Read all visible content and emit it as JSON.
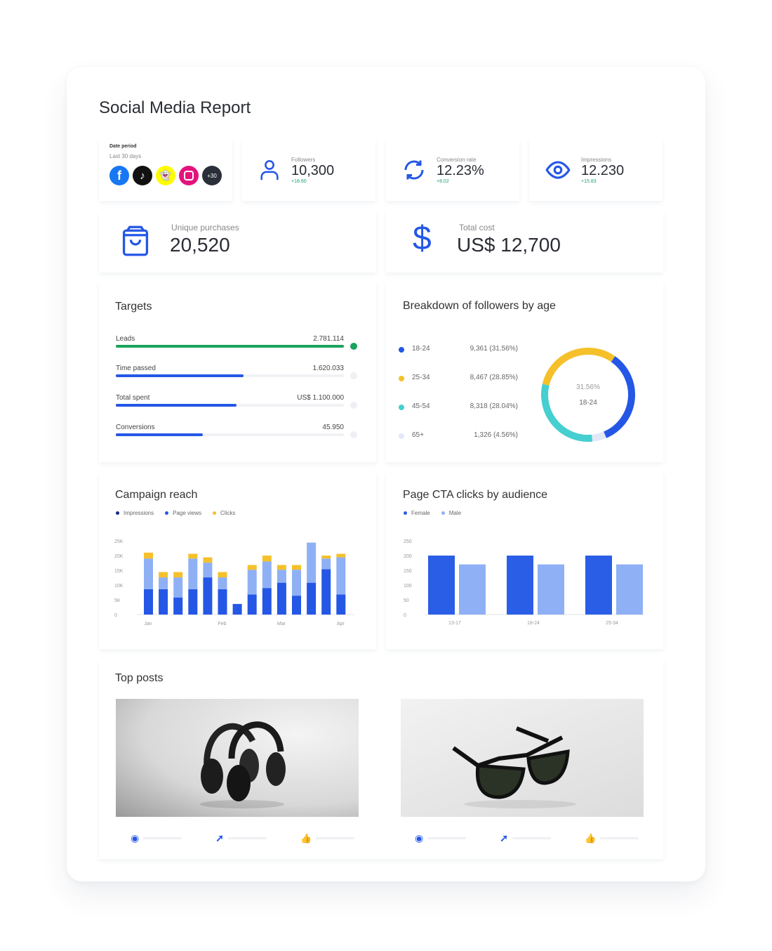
{
  "title": "Social Media Report",
  "date_period": {
    "label": "Date period",
    "value": "Last 30 days",
    "networks": [
      "facebook",
      "tiktok",
      "snapchat",
      "instagram"
    ],
    "more": "+30"
  },
  "kpis": [
    {
      "icon": "user-icon",
      "label": "Followers",
      "value": "10,300",
      "delta": "+18.60"
    },
    {
      "icon": "refresh-icon",
      "label": "Conversion rate",
      "value": "12.23%",
      "delta": "+8.02"
    },
    {
      "icon": "eye-icon",
      "label": "Impressions",
      "value": "12.230",
      "delta": "+15.83"
    }
  ],
  "summary": [
    {
      "icon": "shopping-bag-icon",
      "label": "Unique purchases",
      "value": "20,520"
    },
    {
      "icon": "dollar-icon",
      "label": "Total cost",
      "value": "US$ 12,700"
    }
  ],
  "targets": {
    "title": "Targets",
    "items": [
      {
        "label": "Leads",
        "value": "2.781.114",
        "progress": 1.0,
        "color": "#1aa35c"
      },
      {
        "label": "Time passed",
        "value": "1.620.033",
        "progress": 0.56,
        "color": "#2457e6"
      },
      {
        "label": "Total spent",
        "value": "US$ 1.100.000",
        "progress": 0.53,
        "color": "#2457e6"
      },
      {
        "label": "Conversions",
        "value": "45.950",
        "progress": 0.38,
        "color": "#2457e6"
      }
    ]
  },
  "age": {
    "title": "Breakdown of followers by age",
    "center_value": "31.56%",
    "center_label": "18-24",
    "items": [
      {
        "label": "18-24",
        "value": "9,361 (31.56%)",
        "pct": 31.56,
        "color": "#2457e6"
      },
      {
        "label": "25-34",
        "value": "8,467 (28.85%)",
        "pct": 28.85,
        "color": "#f5c02a"
      },
      {
        "label": "45-54",
        "value": "8,318 (28.04%)",
        "pct": 28.04,
        "color": "#45cfd0"
      },
      {
        "label": "65+",
        "value": "1,326 (4.56%)",
        "pct": 4.56,
        "color": "#e3e8f6"
      }
    ]
  },
  "chart_data": [
    {
      "type": "bar",
      "stacked": true,
      "title": "Campaign reach",
      "legend_position": "top-left",
      "yticks": [
        "0",
        "5K",
        "10K",
        "15K",
        "20K",
        "25K"
      ],
      "ylim": [
        0,
        25000
      ],
      "xticks": [
        {
          "label": "Jan",
          "index": 0
        },
        {
          "label": "Feb",
          "index": 5
        },
        {
          "label": "Mar",
          "index": 9
        },
        {
          "label": "Apr",
          "index": 13
        }
      ],
      "series": [
        {
          "name": "Impressions",
          "color": "#2457e6",
          "values": [
            8600,
            8600,
            5800,
            8600,
            12600,
            8600,
            3600,
            6800,
            9000,
            10800,
            6400,
            10800,
            15400,
            6800
          ]
        },
        {
          "name": "Page views",
          "color": "#8fb0f5",
          "values": [
            10400,
            4000,
            6800,
            10400,
            5000,
            4000,
            0,
            8400,
            9000,
            4400,
            8800,
            13600,
            3600,
            12600
          ]
        },
        {
          "name": "Clicks",
          "color": "#f5c02a",
          "values": [
            2000,
            1800,
            1800,
            1600,
            1800,
            1800,
            0,
            1600,
            2000,
            1600,
            1600,
            0,
            1000,
            1200
          ]
        }
      ]
    },
    {
      "type": "bar",
      "title": "Page CTA clicks by audience",
      "legend_position": "top-left",
      "categories": [
        "13-17",
        "18-24",
        "25-34"
      ],
      "yticks": [
        "0",
        "50",
        "100",
        "150",
        "200",
        "250"
      ],
      "ylim": [
        0,
        250
      ],
      "series": [
        {
          "name": "Female",
          "color": "#2b5ee6",
          "values": [
            200,
            200,
            200
          ]
        },
        {
          "name": "Male",
          "color": "#8fb0f5",
          "values": [
            170,
            170,
            170
          ]
        }
      ]
    }
  ],
  "top_posts": {
    "title": "Top posts",
    "posts": [
      {
        "image": "headphones"
      },
      {
        "image": "sunglasses"
      }
    ]
  },
  "colors": {
    "accent": "#2457e6",
    "green": "#1aa35c",
    "yellow": "#f5c02a",
    "teal": "#45cfd0"
  }
}
